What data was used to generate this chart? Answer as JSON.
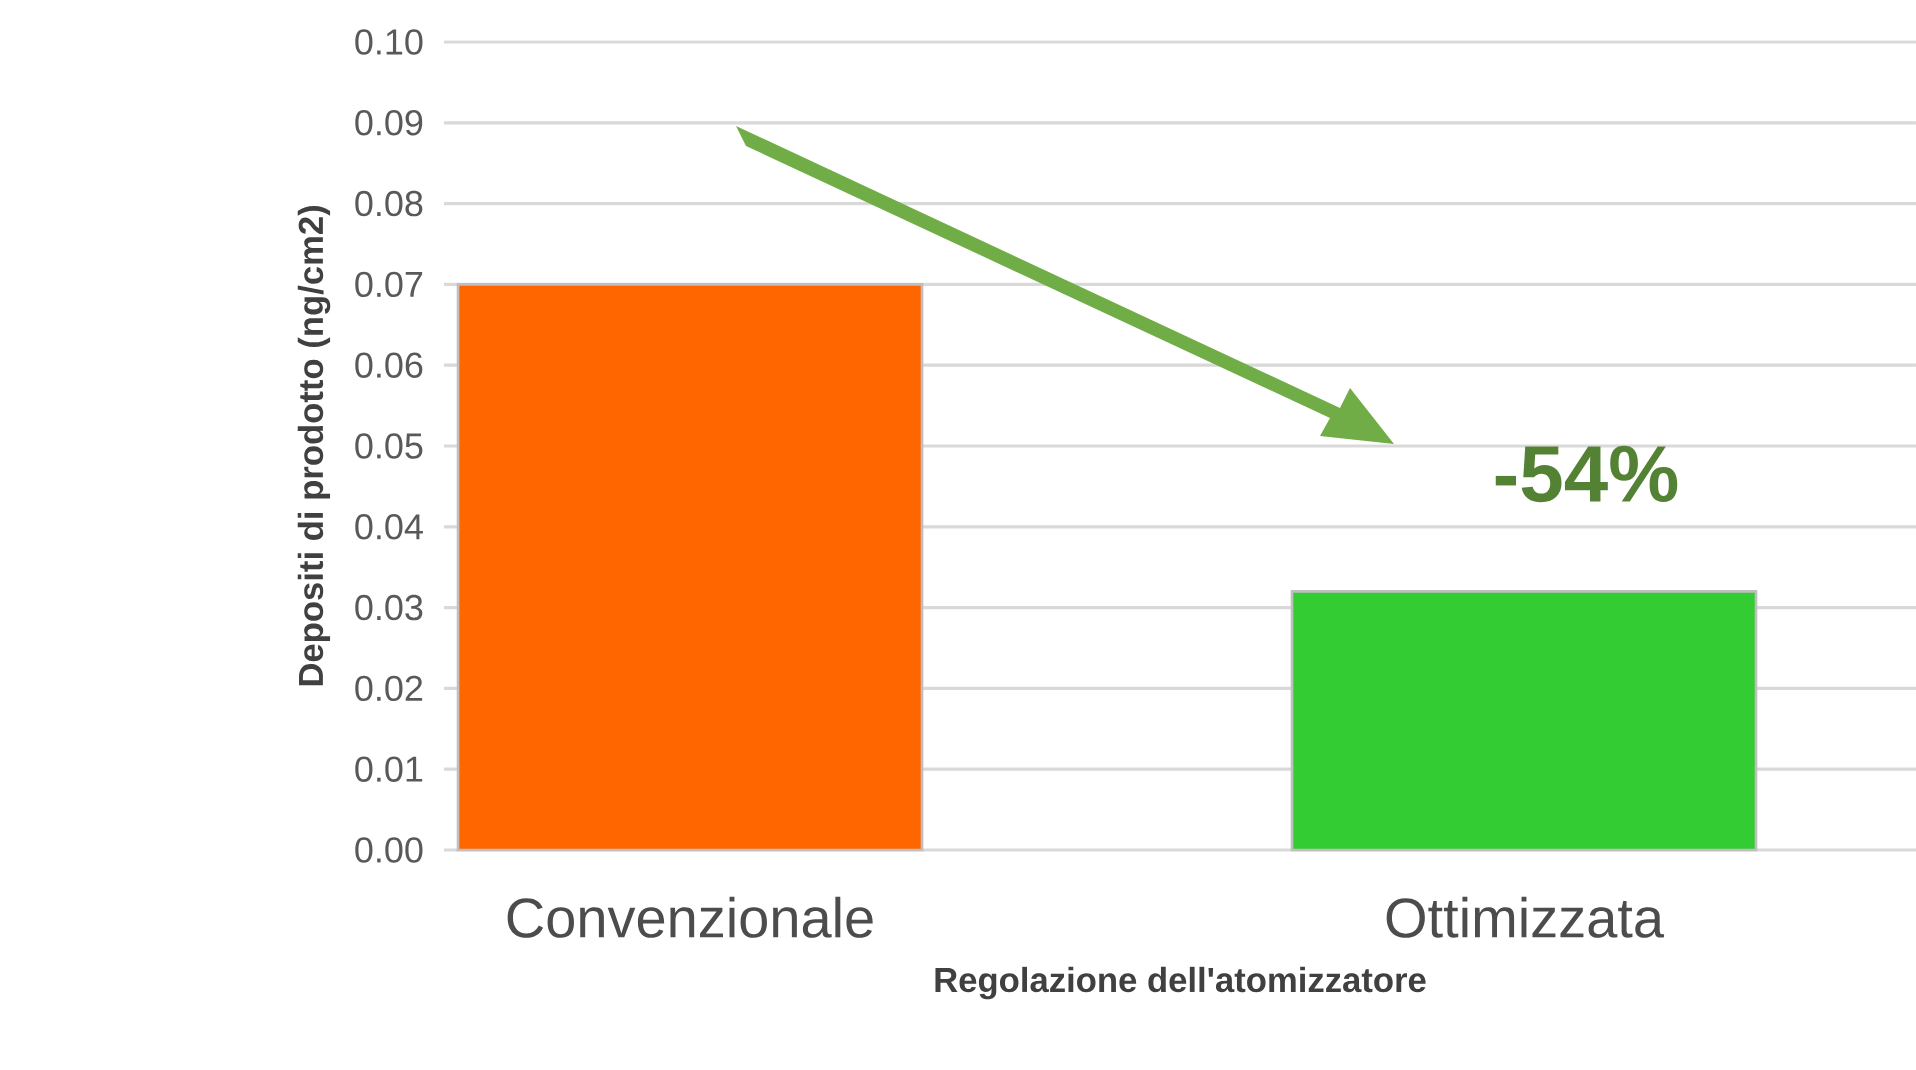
{
  "chart_data": {
    "type": "bar",
    "xlabel": "Regolazione dell'atomizzatore",
    "ylabel": "Depositi di prodotto (ng/cm2)",
    "categories": [
      "Convenzionale",
      "Ottimizzata"
    ],
    "values": [
      0.07,
      0.032
    ],
    "colors": [
      "#ff6600",
      "#33cc33"
    ],
    "ylim": [
      0,
      0.1
    ],
    "yticks": [
      {
        "value": 0,
        "label": "0.00"
      },
      {
        "value": 0.01,
        "label": "0.01"
      },
      {
        "value": 0.02,
        "label": "0.02"
      },
      {
        "value": 0.03,
        "label": "0.03"
      },
      {
        "value": 0.04,
        "label": "0.04"
      },
      {
        "value": 0.05,
        "label": "0.05"
      },
      {
        "value": 0.06,
        "label": "0.06"
      },
      {
        "value": 0.07,
        "label": "0.07"
      },
      {
        "value": 0.08,
        "label": "0.08"
      },
      {
        "value": 0.09,
        "label": "0.09"
      },
      {
        "value": 0.1,
        "label": "0.10"
      }
    ],
    "grid": "y",
    "annotations": [
      "-54%"
    ]
  }
}
